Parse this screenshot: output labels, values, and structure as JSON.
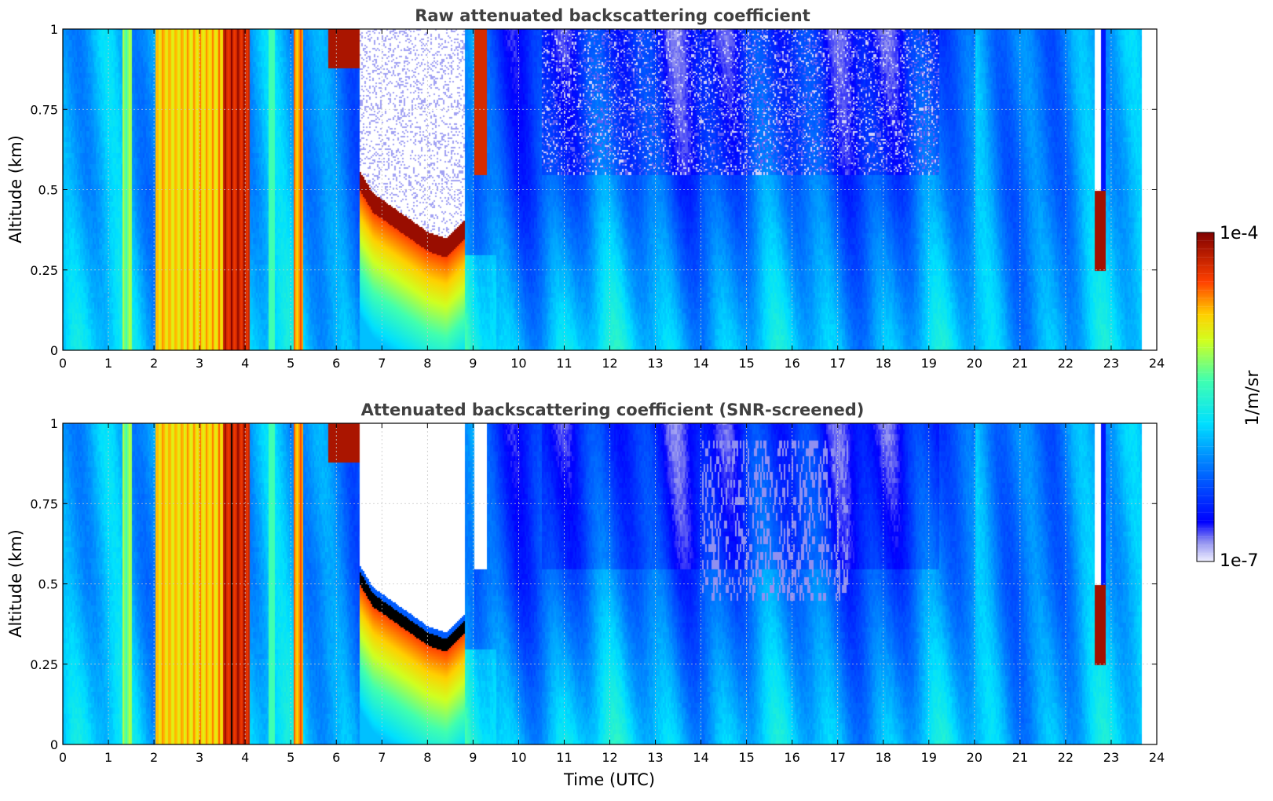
{
  "chart_data": [
    {
      "type": "heatmap",
      "title": "Raw attenuated backscattering coefficient",
      "xlabel": "",
      "ylabel": "Altitude (km)",
      "xlim": [
        0,
        24
      ],
      "ylim": [
        0,
        1
      ],
      "x_ticks": [
        "0",
        "1",
        "2",
        "3",
        "4",
        "5",
        "6",
        "7",
        "8",
        "9",
        "10",
        "11",
        "12",
        "13",
        "14",
        "15",
        "16",
        "17",
        "18",
        "19",
        "20",
        "21",
        "22",
        "23",
        "24"
      ],
      "y_ticks": [
        "0",
        "0.25",
        "0.5",
        "0.75",
        "1"
      ],
      "grid": true,
      "colormap": "jet",
      "colorbar": {
        "min_label": "1e-7",
        "max_label": "1e-4",
        "label": "1/m/sr",
        "scale": "log"
      },
      "data_end_time": 23.65,
      "features": {
        "high_columns": [
          {
            "x_start": 2.0,
            "x_end": 3.5,
            "level": 0.8
          },
          {
            "x_start": 3.5,
            "x_end": 4.1,
            "level": 0.97
          },
          {
            "x_start": 5.05,
            "x_end": 5.25,
            "level": 0.85
          }
        ],
        "cloud_base_layer": {
          "x": [
            6.5,
            6.8,
            7.2,
            7.6,
            8.0,
            8.4,
            8.8
          ],
          "altitude": [
            0.5,
            0.43,
            0.39,
            0.35,
            0.31,
            0.29,
            0.35
          ]
        },
        "cloud_top_column": {
          "x": 22.75,
          "altitude_base": 0.25,
          "altitude_top": 0.5
        }
      }
    },
    {
      "type": "heatmap",
      "title": "Attenuated backscattering coefficient (SNR-screened)",
      "xlabel": "Time (UTC)",
      "ylabel": "Altitude (km)",
      "xlim": [
        0,
        24
      ],
      "ylim": [
        0,
        1
      ],
      "x_ticks": [
        "0",
        "1",
        "2",
        "3",
        "4",
        "5",
        "6",
        "7",
        "8",
        "9",
        "10",
        "11",
        "12",
        "13",
        "14",
        "15",
        "16",
        "17",
        "18",
        "19",
        "20",
        "21",
        "22",
        "23",
        "24"
      ],
      "y_ticks": [
        "0",
        "0.25",
        "0.5",
        "0.75",
        "1"
      ],
      "grid": true,
      "colormap": "jet",
      "screened": true
    }
  ]
}
